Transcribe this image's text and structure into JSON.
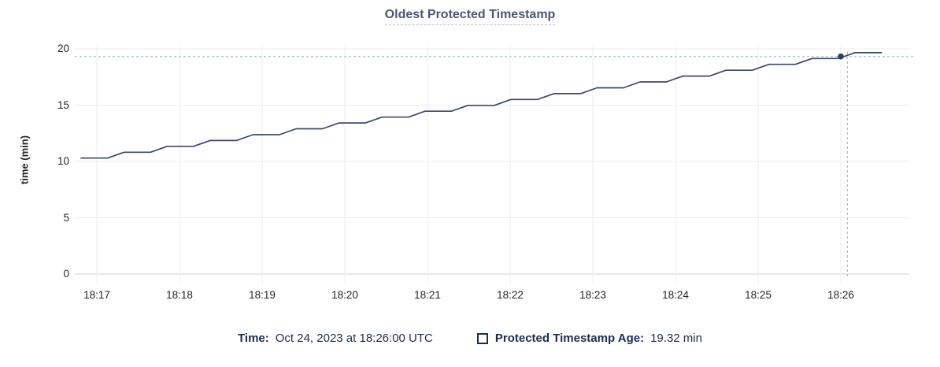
{
  "title": "Oldest Protected Timestamp",
  "tooltip": {
    "time_label": "Time:",
    "time_value": "Oct 24, 2023 at 18:26:00 UTC",
    "series_label": "Protected Timestamp Age:",
    "series_value": "19.32 min"
  },
  "chart_data": {
    "type": "line",
    "title": "Oldest Protected Timestamp",
    "xlabel": "",
    "ylabel": "time (min)",
    "ylim": [
      0,
      20
    ],
    "yticks": [
      0,
      5,
      10,
      15,
      20
    ],
    "xticks": [
      "18:17",
      "18:18",
      "18:19",
      "18:20",
      "18:21",
      "18:22",
      "18:23",
      "18:24",
      "18:25",
      "18:26"
    ],
    "grid": true,
    "legend_position": "bottom",
    "x_unit": "minutes after 18:17 UTC",
    "series": [
      {
        "name": "Protected Timestamp Age",
        "unit": "min",
        "points": [
          [
            -0.19,
            10.3
          ],
          [
            0.13,
            10.3
          ],
          [
            0.33,
            10.82
          ],
          [
            0.65,
            10.82
          ],
          [
            0.85,
            11.34
          ],
          [
            1.17,
            11.34
          ],
          [
            1.37,
            11.86
          ],
          [
            1.69,
            11.86
          ],
          [
            1.89,
            12.38
          ],
          [
            2.21,
            12.38
          ],
          [
            2.41,
            12.9
          ],
          [
            2.73,
            12.9
          ],
          [
            2.93,
            13.42
          ],
          [
            3.25,
            13.42
          ],
          [
            3.45,
            13.94
          ],
          [
            3.77,
            13.94
          ],
          [
            3.97,
            14.46
          ],
          [
            4.29,
            14.46
          ],
          [
            4.49,
            14.98
          ],
          [
            4.81,
            14.98
          ],
          [
            5.01,
            15.5
          ],
          [
            5.33,
            15.5
          ],
          [
            5.53,
            16.02
          ],
          [
            5.85,
            16.02
          ],
          [
            6.05,
            16.54
          ],
          [
            6.37,
            16.54
          ],
          [
            6.57,
            17.06
          ],
          [
            6.89,
            17.06
          ],
          [
            7.09,
            17.58
          ],
          [
            7.41,
            17.58
          ],
          [
            7.61,
            18.1
          ],
          [
            7.93,
            18.1
          ],
          [
            8.13,
            18.62
          ],
          [
            8.45,
            18.62
          ],
          [
            8.65,
            19.14
          ],
          [
            8.97,
            19.14
          ],
          [
            9.17,
            19.66
          ],
          [
            9.49,
            19.66
          ]
        ]
      }
    ],
    "hover": {
      "time": "Oct 24, 2023 at 18:26:00 UTC",
      "x": 9.0,
      "value": 19.32,
      "crosshair_x": 9.08,
      "crosshair_y": 19.32
    },
    "colors": {
      "line": "#3a4a6b",
      "dot": "#2c3d5d",
      "crosshair": "#a9bfd1",
      "grid": "#ededed",
      "axis": "#d2d2d2",
      "title": "#475872",
      "legend_text": "#1b2e4e",
      "tick_text": "#262626"
    }
  }
}
